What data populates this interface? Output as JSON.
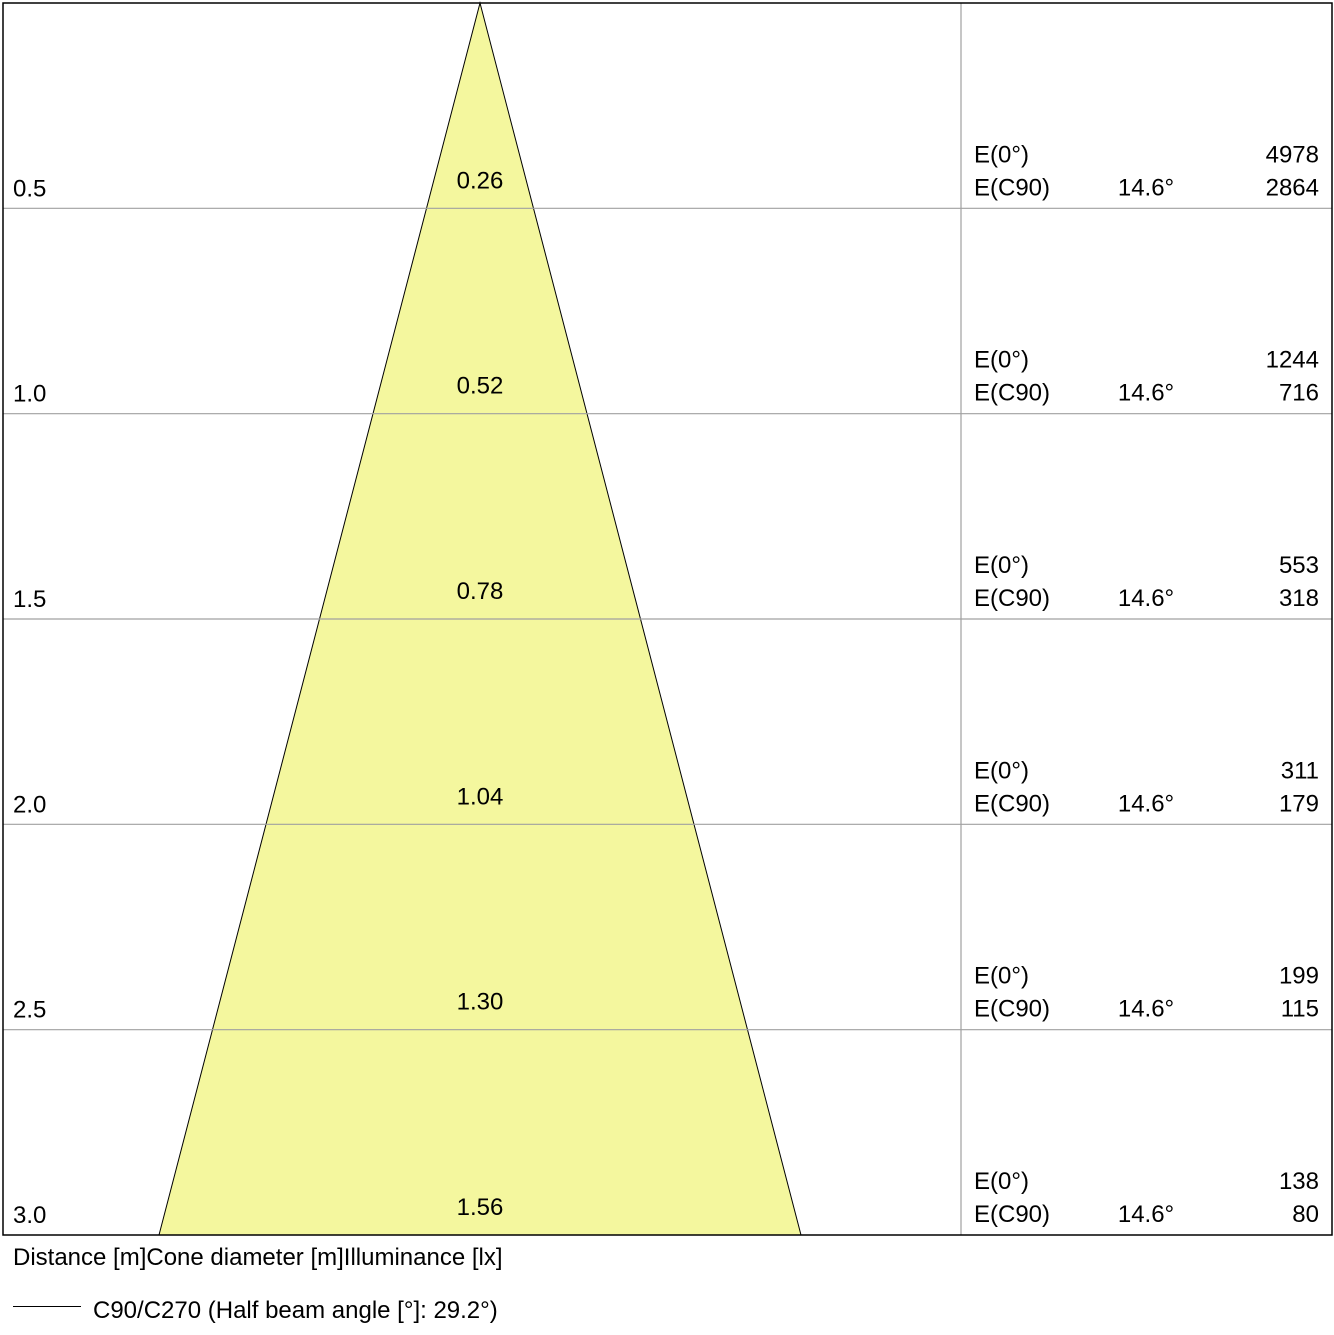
{
  "chart_data": {
    "type": "cone-diagram",
    "axis_caption": "Distance [m]Cone diameter [m]Illuminance [lx]",
    "legend": {
      "label": "C90/C270 (Half beam angle [°]: 29.2°)"
    },
    "colors": {
      "cone_fill": "#f4f79e",
      "grid": "#a0a0a0",
      "frame": "#000000"
    },
    "distance_range": [
      0,
      3.0
    ],
    "cone_diameter_at_max": 1.56,
    "rows": [
      {
        "distance": "0.5",
        "diameter": "0.26",
        "e0_label": "E(0°)",
        "e0_value": "4978",
        "ec90_label": "E(C90)",
        "angle": "14.6°",
        "ec90_value": "2864"
      },
      {
        "distance": "1.0",
        "diameter": "0.52",
        "e0_label": "E(0°)",
        "e0_value": "1244",
        "ec90_label": "E(C90)",
        "angle": "14.6°",
        "ec90_value": "716"
      },
      {
        "distance": "1.5",
        "diameter": "0.78",
        "e0_label": "E(0°)",
        "e0_value": "553",
        "ec90_label": "E(C90)",
        "angle": "14.6°",
        "ec90_value": "318"
      },
      {
        "distance": "2.0",
        "diameter": "1.04",
        "e0_label": "E(0°)",
        "e0_value": "311",
        "ec90_label": "E(C90)",
        "angle": "14.6°",
        "ec90_value": "179"
      },
      {
        "distance": "2.5",
        "diameter": "1.30",
        "e0_label": "E(0°)",
        "e0_value": "199",
        "ec90_label": "E(C90)",
        "angle": "14.6°",
        "ec90_value": "115"
      },
      {
        "distance": "3.0",
        "diameter": "1.56",
        "e0_label": "E(0°)",
        "e0_value": "138",
        "ec90_label": "E(C90)",
        "angle": "14.6°",
        "ec90_value": "80"
      }
    ]
  }
}
